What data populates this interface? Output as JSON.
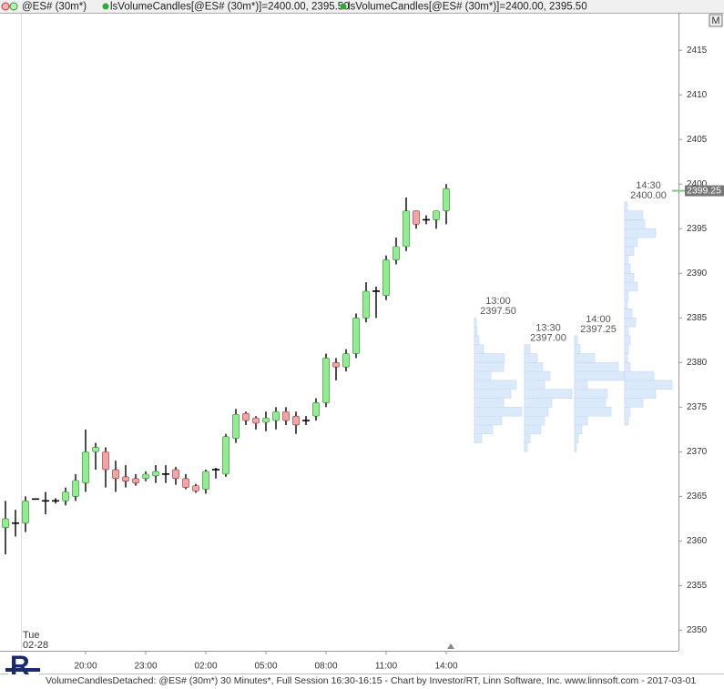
{
  "header": {
    "symbol": "@ES# (30m*)",
    "study1": "lsVolumeCandles[@ES# (30m*)]=2400.00, 2395.50",
    "study2": "lsVolumeCandles[@ES# (30m*)]=2400.00, 2395.50",
    "button": "M"
  },
  "footer": "VolumeCandlesDetached: @ES# (30m*) 30 Minutes*, Full Session 16:30-16:15 - Chart by Investor/RT, Linn Software, Inc. www.linnsoft.com - 2017-03-01",
  "date_label": {
    "day": "Tue",
    "date": "02-28"
  },
  "chart_data": {
    "type": "candlestick",
    "categories": [
      null,
      null,
      null,
      null,
      null,
      null,
      null,
      null,
      "20:00",
      null,
      null,
      null,
      null,
      null,
      "23:00",
      null,
      null,
      null,
      null,
      null,
      "02:00",
      null,
      null,
      null,
      null,
      null,
      "05:00",
      null,
      null,
      null,
      null,
      null,
      "08:00",
      null,
      null,
      null,
      null,
      null,
      "11:00",
      null,
      null,
      null,
      null,
      null,
      "14:00"
    ],
    "open": [
      2361.5,
      2362,
      2362,
      2364.7,
      2364.5,
      2364.5,
      2364.5,
      2365,
      2366.5,
      2370,
      2370,
      2368,
      2367.2,
      2367,
      2367,
      2367.3,
      2367.5,
      2368,
      2367,
      2366.2,
      2365.8,
      2368,
      2367.5,
      2371.5,
      2374.3,
      2373.8,
      2373.3,
      2373.5,
      2374.5,
      2374,
      2373.5,
      2374,
      2375.5,
      2380,
      2379.5,
      2381,
      2385,
      2388,
      2387.5,
      2391.5,
      2393,
      2397,
      2396,
      2396,
      2397
    ],
    "high": [
      2364.5,
      2363.5,
      2365,
      2364.7,
      2365.5,
      2364.8,
      2366,
      2367.5,
      2372.5,
      2371,
      2370.5,
      2369,
      2368.5,
      2367.5,
      2367.8,
      2368.5,
      2368.5,
      2368.3,
      2367.5,
      2366.4,
      2368,
      2368.2,
      2372,
      2374.8,
      2374.5,
      2374,
      2374.5,
      2375,
      2375,
      2374.5,
      2374,
      2376,
      2381,
      2380.5,
      2381.5,
      2385.5,
      2389,
      2388.5,
      2392,
      2394,
      2398.5,
      2397,
      2396.5,
      2397,
      2400
    ],
    "low": [
      2358.5,
      2360.5,
      2361,
      2364.7,
      2363,
      2364.2,
      2364,
      2364.5,
      2365.5,
      2368,
      2366,
      2365.5,
      2366,
      2366.2,
      2366.7,
      2366.5,
      2366.5,
      2366.3,
      2365.8,
      2365.4,
      2365.3,
      2367,
      2367.2,
      2371,
      2373,
      2372.5,
      2372.3,
      2372.5,
      2373,
      2372,
      2373,
      2373.5,
      2375,
      2378,
      2379,
      2380.5,
      2384.5,
      2385,
      2387,
      2391,
      2392.5,
      2395,
      2395.5,
      2395,
      2395.5
    ],
    "close": [
      2362.5,
      2362,
      2364.5,
      2364.7,
      2364.5,
      2364.5,
      2365.5,
      2366.8,
      2370,
      2370.5,
      2368,
      2367,
      2366.7,
      2366.5,
      2367.5,
      2367.8,
      2367.5,
      2367,
      2366,
      2365.6,
      2367.8,
      2368,
      2371.7,
      2374.2,
      2373.5,
      2373.2,
      2373.8,
      2374.5,
      2373.5,
      2373,
      2373.5,
      2375.5,
      2380.5,
      2379.5,
      2381,
      2385,
      2388,
      2388,
      2391.5,
      2393,
      2397,
      2395.5,
      2396,
      2397,
      2399.5
    ],
    "up_color": "#90ee90",
    "down_color": "#f4a4a4",
    "ylim": [
      2347.7,
      2419.1
    ],
    "yticks": [
      2350,
      2355,
      2360,
      2365,
      2370,
      2375,
      2380,
      2385,
      2390,
      2395,
      2400,
      2405,
      2410,
      2415
    ],
    "last_price": 2399.25,
    "profiles": [
      {
        "time": "13:00",
        "price": "2397.50",
        "levels": [
          2371,
          2372,
          2373,
          2374,
          2375,
          2376,
          2377,
          2378,
          2379,
          2380,
          2381,
          2382,
          2383,
          2384
        ],
        "volumes": [
          8,
          20,
          30,
          52,
          32,
          40,
          46,
          18,
          32,
          33,
          10,
          5,
          3,
          2
        ]
      },
      {
        "time": "13:30",
        "price": "2397.00",
        "levels": [
          2370,
          2371,
          2372,
          2373,
          2374,
          2375,
          2376,
          2377,
          2378,
          2379,
          2380,
          2381
        ],
        "volumes": [
          3,
          6,
          18,
          22,
          26,
          30,
          52,
          22,
          28,
          20,
          14,
          6
        ]
      },
      {
        "time": "14:00",
        "price": "2397.25",
        "levels": [
          2370,
          2371,
          2372,
          2373,
          2374,
          2375,
          2376,
          2377,
          2378,
          2379,
          2380,
          2381,
          2382
        ],
        "volumes": [
          2,
          4,
          8,
          14,
          40,
          34,
          36,
          14,
          54,
          48,
          22,
          6,
          3
        ]
      },
      {
        "time": "14:30",
        "price": "2400.00",
        "levels": [
          2373,
          2374,
          2375,
          2376,
          2377,
          2378,
          2379,
          2380,
          2381,
          2382,
          2383,
          2384,
          2385,
          2386,
          2387,
          2388,
          2389,
          2390,
          2391,
          2392,
          2393,
          2394,
          2395,
          2396,
          2397
        ],
        "volumes": [
          4,
          6,
          20,
          34,
          52,
          32,
          6,
          3,
          4,
          6,
          4,
          12,
          8,
          3,
          4,
          14,
          10,
          6,
          4,
          10,
          14,
          34,
          22,
          20,
          3
        ]
      }
    ],
    "profile_color": "#dbeafb"
  }
}
